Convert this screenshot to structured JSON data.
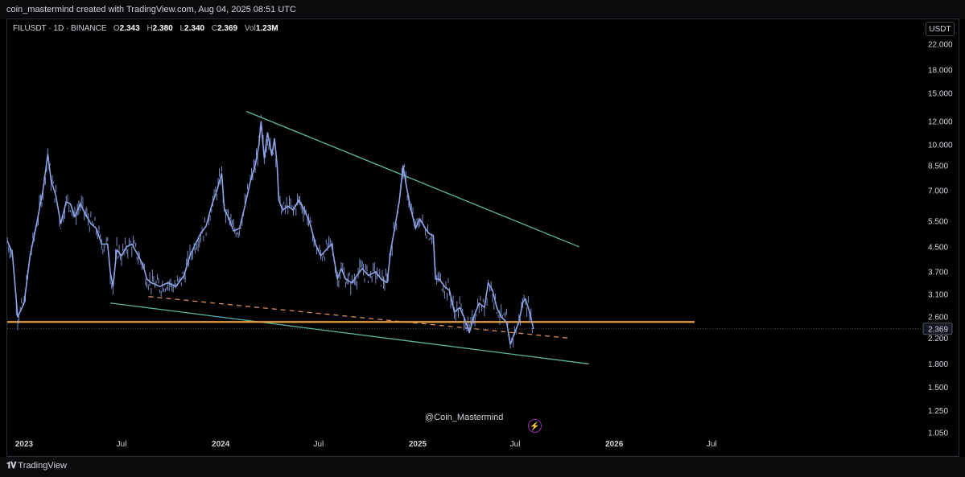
{
  "header": {
    "title": "coin_mastermind created with TradingView.com, Aug 04, 2025 08:51 UTC"
  },
  "legend": {
    "symbol": "FILUSDT · 1D · BINANCE",
    "open_label": "O",
    "open": "2.343",
    "high_label": "H",
    "high": "2.380",
    "low_label": "L",
    "low": "2.340",
    "close_label": "C",
    "close": "2.369",
    "vol_label": "Vol",
    "vol": "1.23M"
  },
  "currency": "USDT",
  "watermark": "@Coin_Mastermind",
  "footer": {
    "brand": "TradingView"
  },
  "colors": {
    "candle": "#8ea4e8",
    "trendline": "#5fb6a1",
    "support": "#e6a33b",
    "dashed": "#d98c5f",
    "last_price_bg": "#131722"
  },
  "chart_data": {
    "type": "line",
    "scale": "log",
    "ylim": [
      1.05,
      24.5
    ],
    "y_ticks": [
      "22.000",
      "18.000",
      "15.000",
      "12.000",
      "10.000",
      "8.500",
      "7.000",
      "5.500",
      "4.500",
      "3.700",
      "3.100",
      "2.600",
      "2.200",
      "1.800",
      "1.500",
      "1.250",
      "1.050"
    ],
    "x_ticks": [
      {
        "label": "2023",
        "date": "2023-01-01",
        "bold": true
      },
      {
        "label": "Jul",
        "date": "2023-07-01",
        "bold": false
      },
      {
        "label": "2024",
        "date": "2024-01-01",
        "bold": true
      },
      {
        "label": "Jul",
        "date": "2024-07-01",
        "bold": false
      },
      {
        "label": "2025",
        "date": "2025-01-01",
        "bold": true
      },
      {
        "label": "Jul",
        "date": "2025-07-01",
        "bold": false
      },
      {
        "label": "2026",
        "date": "2026-01-01",
        "bold": true
      },
      {
        "label": "Jul",
        "date": "2026-07-01",
        "bold": false
      }
    ],
    "last_price": "2.369",
    "series": [
      {
        "points": [
          [
            "2022-12-01",
            4.7
          ],
          [
            "2022-12-10",
            4.3
          ],
          [
            "2022-12-20",
            2.6
          ],
          [
            "2023-01-01",
            2.9
          ],
          [
            "2023-01-12",
            4.2
          ],
          [
            "2023-01-25",
            5.5
          ],
          [
            "2023-02-05",
            7.0
          ],
          [
            "2023-02-14",
            9.3
          ],
          [
            "2023-02-20",
            7.6
          ],
          [
            "2023-03-01",
            6.7
          ],
          [
            "2023-03-10",
            5.4
          ],
          [
            "2023-03-20",
            6.4
          ],
          [
            "2023-03-28",
            6.3
          ],
          [
            "2023-04-05",
            5.7
          ],
          [
            "2023-04-15",
            6.3
          ],
          [
            "2023-04-25",
            5.8
          ],
          [
            "2023-05-05",
            5.4
          ],
          [
            "2023-05-15",
            5.2
          ],
          [
            "2023-05-25",
            4.6
          ],
          [
            "2023-06-05",
            4.6
          ],
          [
            "2023-06-10",
            3.7
          ],
          [
            "2023-06-15",
            3.3
          ],
          [
            "2023-06-22",
            4.4
          ],
          [
            "2023-07-01",
            4.2
          ],
          [
            "2023-07-10",
            4.5
          ],
          [
            "2023-07-20",
            4.6
          ],
          [
            "2023-08-01",
            4.2
          ],
          [
            "2023-08-10",
            3.9
          ],
          [
            "2023-08-17",
            3.5
          ],
          [
            "2023-08-25",
            3.4
          ],
          [
            "2023-09-10",
            3.3
          ],
          [
            "2023-09-25",
            3.4
          ],
          [
            "2023-10-10",
            3.3
          ],
          [
            "2023-10-25",
            3.6
          ],
          [
            "2023-11-05",
            4.2
          ],
          [
            "2023-11-15",
            4.6
          ],
          [
            "2023-11-25",
            5.0
          ],
          [
            "2023-12-05",
            5.3
          ],
          [
            "2023-12-15",
            6.2
          ],
          [
            "2023-12-25",
            7.0
          ],
          [
            "2024-01-03",
            8.0
          ],
          [
            "2024-01-08",
            6.0
          ],
          [
            "2024-01-15",
            5.7
          ],
          [
            "2024-01-25",
            5.1
          ],
          [
            "2024-02-05",
            5.2
          ],
          [
            "2024-02-15",
            6.2
          ],
          [
            "2024-02-25",
            7.5
          ],
          [
            "2024-03-05",
            8.5
          ],
          [
            "2024-03-12",
            10.0
          ],
          [
            "2024-03-16",
            12.0
          ],
          [
            "2024-03-22",
            9.0
          ],
          [
            "2024-03-28",
            11.0
          ],
          [
            "2024-04-05",
            9.2
          ],
          [
            "2024-04-10",
            10.5
          ],
          [
            "2024-04-15",
            8.5
          ],
          [
            "2024-04-18",
            6.5
          ],
          [
            "2024-04-25",
            6.0
          ],
          [
            "2024-05-05",
            6.2
          ],
          [
            "2024-05-15",
            6.0
          ],
          [
            "2024-05-25",
            6.5
          ],
          [
            "2024-06-05",
            6.0
          ],
          [
            "2024-06-15",
            5.4
          ],
          [
            "2024-06-25",
            4.6
          ],
          [
            "2024-07-05",
            4.2
          ],
          [
            "2024-07-15",
            4.4
          ],
          [
            "2024-07-25",
            4.6
          ],
          [
            "2024-08-05",
            3.5
          ],
          [
            "2024-08-12",
            3.8
          ],
          [
            "2024-08-20",
            3.5
          ],
          [
            "2024-09-01",
            3.4
          ],
          [
            "2024-09-10",
            3.6
          ],
          [
            "2024-09-20",
            3.8
          ],
          [
            "2024-10-01",
            3.6
          ],
          [
            "2024-10-15",
            3.7
          ],
          [
            "2024-10-25",
            3.5
          ],
          [
            "2024-11-05",
            3.4
          ],
          [
            "2024-11-12",
            4.4
          ],
          [
            "2024-11-20",
            5.3
          ],
          [
            "2024-11-28",
            6.5
          ],
          [
            "2024-12-05",
            8.5
          ],
          [
            "2024-12-10",
            7.4
          ],
          [
            "2024-12-18",
            6.2
          ],
          [
            "2024-12-28",
            5.2
          ],
          [
            "2025-01-05",
            5.6
          ],
          [
            "2025-01-15",
            5.2
          ],
          [
            "2025-01-22",
            5.0
          ],
          [
            "2025-01-30",
            4.9
          ],
          [
            "2025-02-03",
            3.5
          ],
          [
            "2025-02-10",
            3.5
          ],
          [
            "2025-02-20",
            3.3
          ],
          [
            "2025-03-01",
            3.2
          ],
          [
            "2025-03-10",
            2.7
          ],
          [
            "2025-03-20",
            2.8
          ],
          [
            "2025-03-28",
            2.6
          ],
          [
            "2025-04-07",
            2.3
          ],
          [
            "2025-04-15",
            2.6
          ],
          [
            "2025-04-25",
            2.9
          ],
          [
            "2025-05-05",
            2.8
          ],
          [
            "2025-05-12",
            3.4
          ],
          [
            "2025-05-20",
            3.2
          ],
          [
            "2025-05-28",
            2.8
          ],
          [
            "2025-06-05",
            2.6
          ],
          [
            "2025-06-15",
            2.5
          ],
          [
            "2025-06-22",
            2.1
          ],
          [
            "2025-06-30",
            2.3
          ],
          [
            "2025-07-08",
            2.5
          ],
          [
            "2025-07-15",
            2.9
          ],
          [
            "2025-07-20",
            3.0
          ],
          [
            "2025-07-28",
            2.7
          ],
          [
            "2025-08-04",
            2.37
          ]
        ]
      }
    ],
    "drawings": [
      {
        "name": "upper-trendline",
        "from": [
          "2024-02-18",
          13.0
        ],
        "to": [
          "2025-10-28",
          4.5
        ]
      },
      {
        "name": "lower-trendline",
        "from": [
          "2023-06-10",
          2.9
        ],
        "to": [
          "2025-11-15",
          1.8
        ]
      },
      {
        "name": "dashed-trendline",
        "from": [
          "2023-08-20",
          3.05
        ],
        "to": [
          "2025-10-12",
          2.2
        ]
      },
      {
        "name": "support-line",
        "from": [
          "2022-12-01",
          2.5
        ],
        "to": [
          "2025-12-15",
          2.5
        ]
      }
    ]
  }
}
